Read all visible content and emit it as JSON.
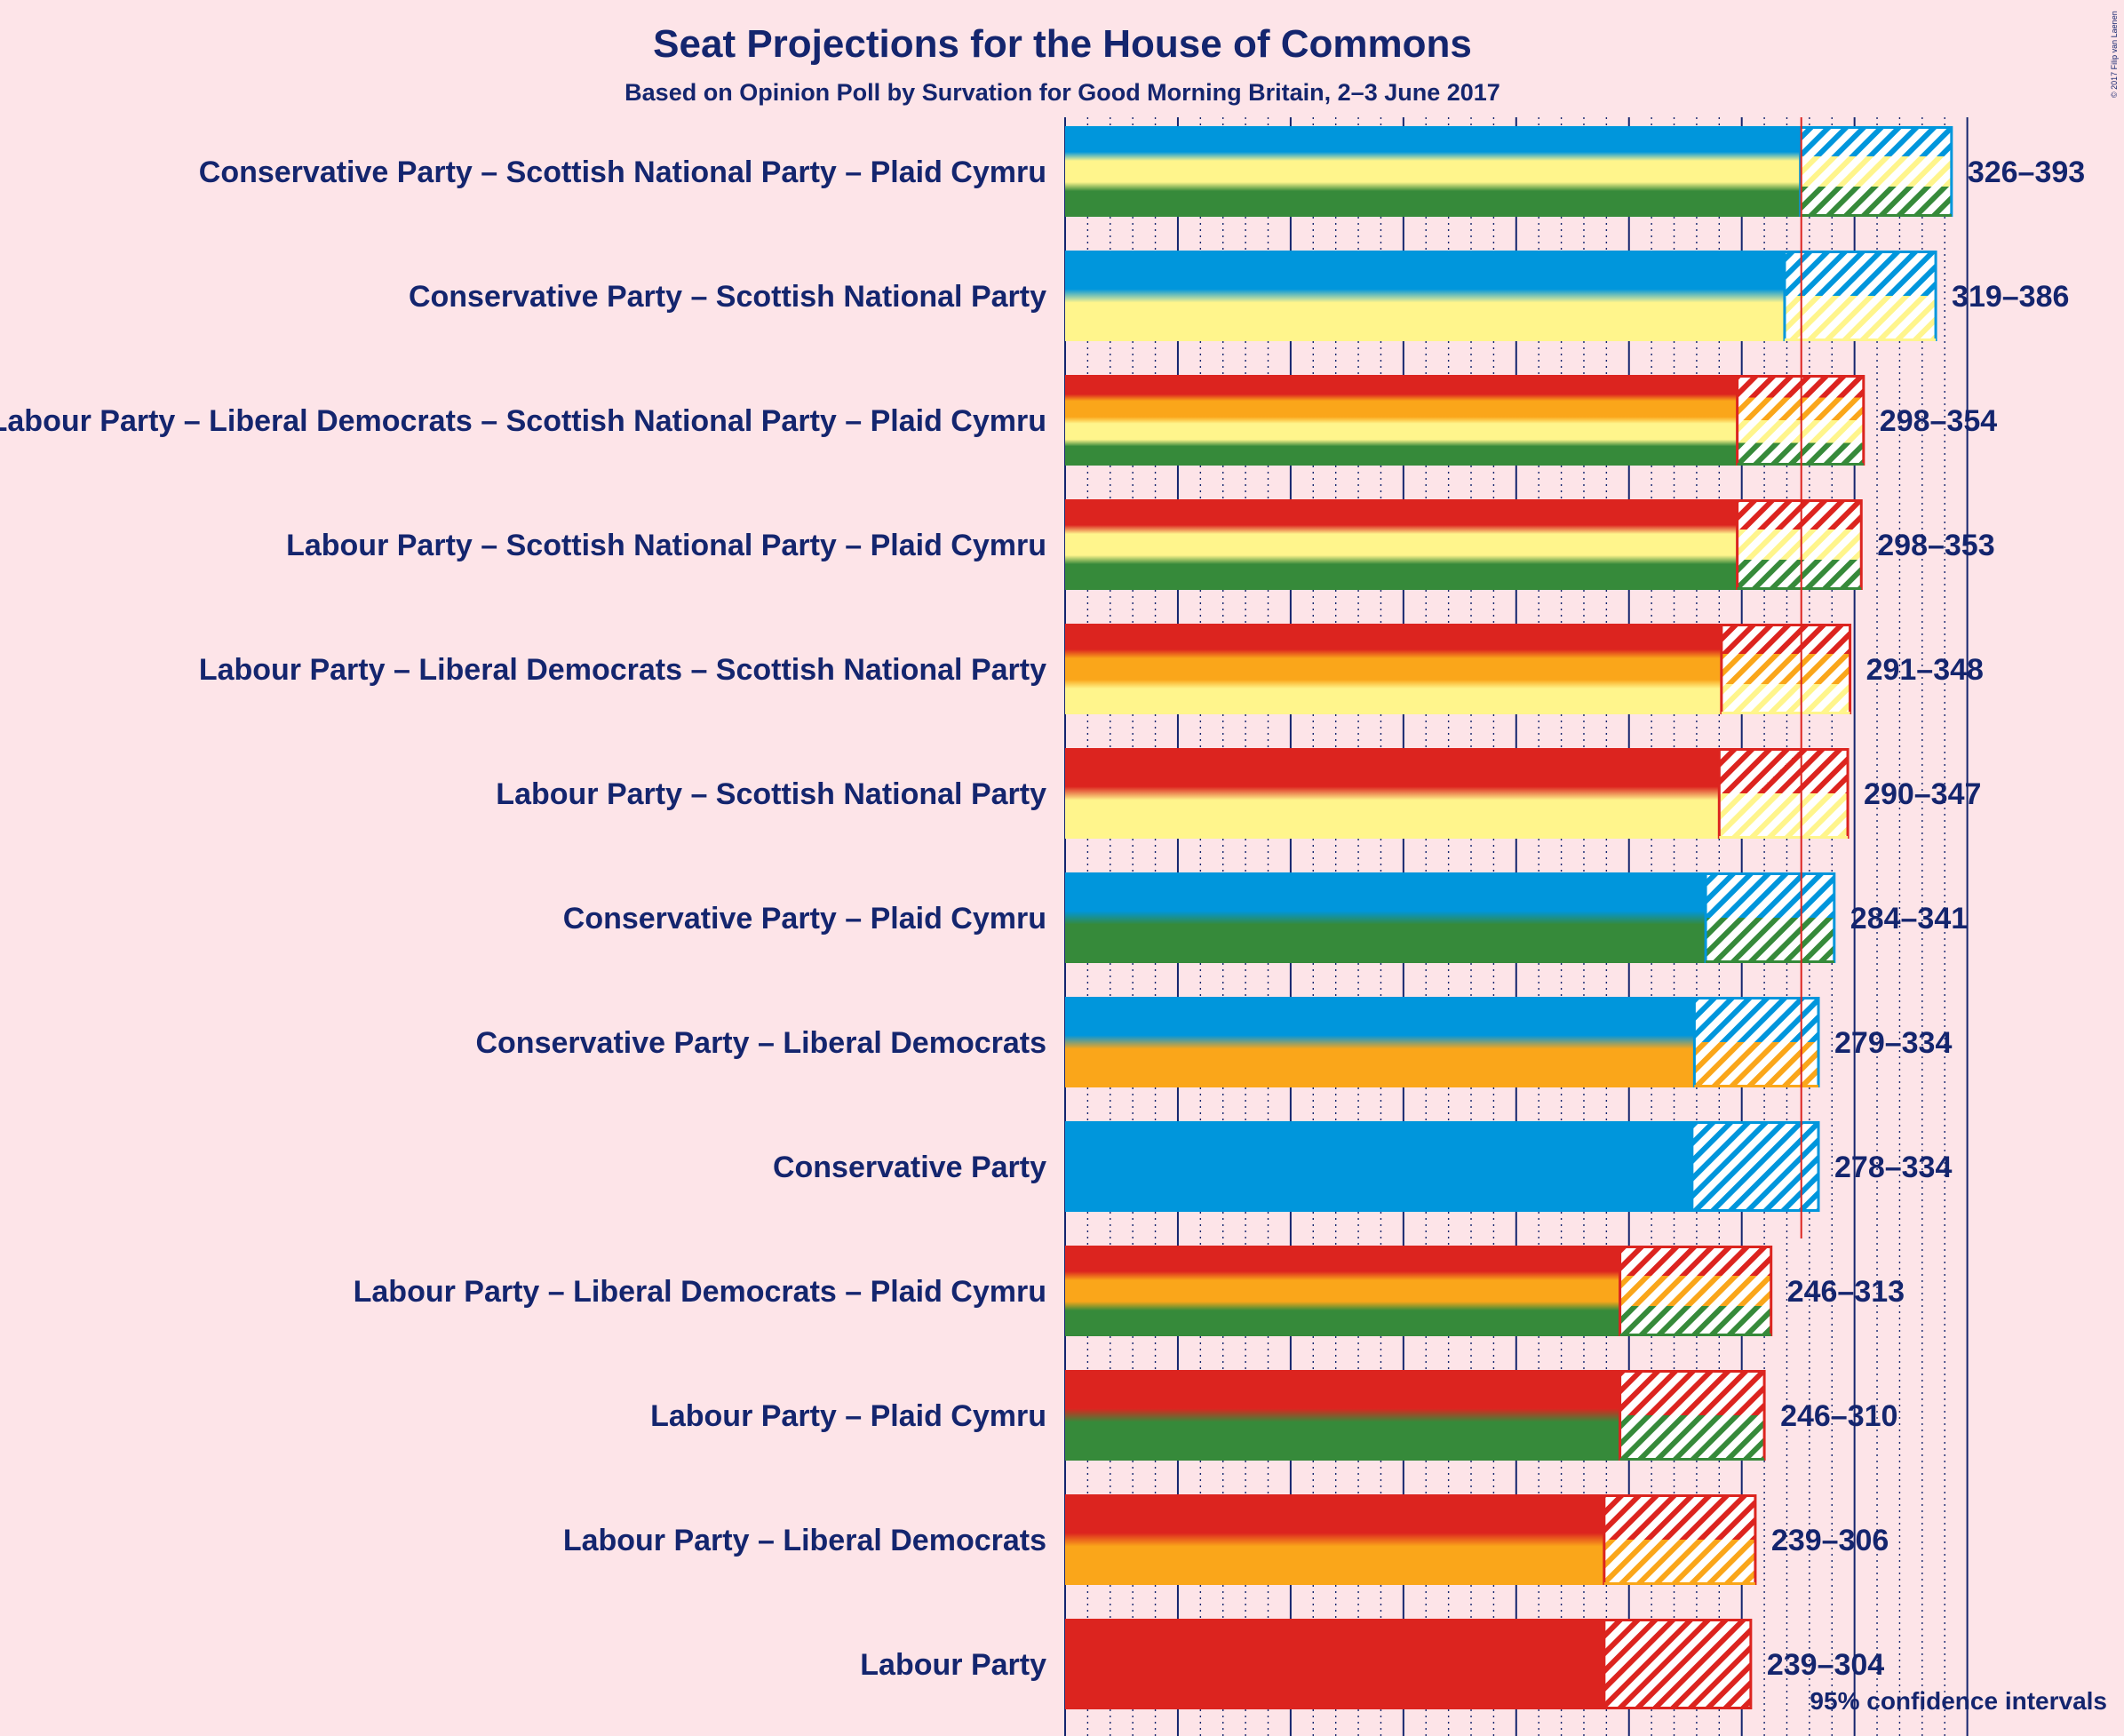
{
  "chart_data": {
    "type": "bar",
    "title": "Seat Projections for the House of Commons",
    "subtitle": "Based on Opinion Poll by Survation for Good Morning Britain, 2–3 June 2017",
    "footnote": "95% confidence intervals",
    "copyright": "© 2017 Filip van Laenen",
    "majority_line": 326,
    "xlim": [
      0,
      400
    ],
    "major_grid_step": 50,
    "minor_grid_step": 10,
    "party_colors": {
      "Conservative Party": "#0096dc",
      "Labour Party": "#dc241f",
      "Liberal Democrats": "#faa61a",
      "Scottish National Party": "#fff58c",
      "Plaid Cymru": "#368a3a"
    },
    "coalitions": [
      {
        "label": "Conservative Party – Scottish National Party – Plaid Cymru",
        "parties": [
          "Conservative Party",
          "Scottish National Party",
          "Plaid Cymru"
        ],
        "low": 326,
        "high": 393,
        "range_label": "326–393"
      },
      {
        "label": "Conservative Party – Scottish National Party",
        "parties": [
          "Conservative Party",
          "Scottish National Party"
        ],
        "low": 319,
        "high": 386,
        "range_label": "319–386"
      },
      {
        "label": "Labour Party – Liberal Democrats – Scottish National Party – Plaid Cymru",
        "parties": [
          "Labour Party",
          "Liberal Democrats",
          "Scottish National Party",
          "Plaid Cymru"
        ],
        "low": 298,
        "high": 354,
        "range_label": "298–354"
      },
      {
        "label": "Labour Party – Scottish National Party – Plaid Cymru",
        "parties": [
          "Labour Party",
          "Scottish National Party",
          "Plaid Cymru"
        ],
        "low": 298,
        "high": 353,
        "range_label": "298–353"
      },
      {
        "label": "Labour Party – Liberal Democrats – Scottish National Party",
        "parties": [
          "Labour Party",
          "Liberal Democrats",
          "Scottish National Party"
        ],
        "low": 291,
        "high": 348,
        "range_label": "291–348"
      },
      {
        "label": "Labour Party – Scottish National Party",
        "parties": [
          "Labour Party",
          "Scottish National Party"
        ],
        "low": 290,
        "high": 347,
        "range_label": "290–347"
      },
      {
        "label": "Conservative Party – Plaid Cymru",
        "parties": [
          "Conservative Party",
          "Plaid Cymru"
        ],
        "low": 284,
        "high": 341,
        "range_label": "284–341"
      },
      {
        "label": "Conservative Party – Liberal Democrats",
        "parties": [
          "Conservative Party",
          "Liberal Democrats"
        ],
        "low": 279,
        "high": 334,
        "range_label": "279–334"
      },
      {
        "label": "Conservative Party",
        "parties": [
          "Conservative Party"
        ],
        "low": 278,
        "high": 334,
        "range_label": "278–334"
      },
      {
        "label": "Labour Party – Liberal Democrats – Plaid Cymru",
        "parties": [
          "Labour Party",
          "Liberal Democrats",
          "Plaid Cymru"
        ],
        "low": 246,
        "high": 313,
        "range_label": "246–313"
      },
      {
        "label": "Labour Party – Plaid Cymru",
        "parties": [
          "Labour Party",
          "Plaid Cymru"
        ],
        "low": 246,
        "high": 310,
        "range_label": "246–310"
      },
      {
        "label": "Labour Party – Liberal Democrats",
        "parties": [
          "Labour Party",
          "Liberal Democrats"
        ],
        "low": 239,
        "high": 306,
        "range_label": "239–306"
      },
      {
        "label": "Labour Party",
        "parties": [
          "Labour Party"
        ],
        "low": 239,
        "high": 304,
        "range_label": "239–304"
      }
    ]
  }
}
